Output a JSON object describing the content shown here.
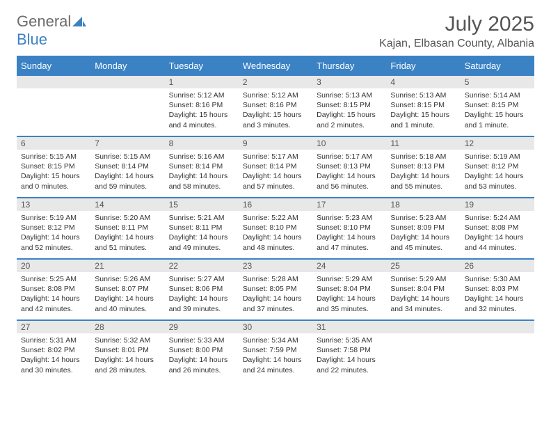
{
  "logo": {
    "general": "General",
    "blue": "Blue"
  },
  "title": "July 2025",
  "location": "Kajan, Elbasan County, Albania",
  "colors": {
    "header_bg": "#3b82c4",
    "header_text": "#ffffff",
    "daynum_bg": "#e8e8e8",
    "text": "#333333",
    "border": "#3b82c4"
  },
  "weekdays": [
    "Sunday",
    "Monday",
    "Tuesday",
    "Wednesday",
    "Thursday",
    "Friday",
    "Saturday"
  ],
  "weeks": [
    [
      null,
      null,
      {
        "n": "1",
        "sr": "5:12 AM",
        "ss": "8:16 PM",
        "dl": "15 hours and 4 minutes."
      },
      {
        "n": "2",
        "sr": "5:12 AM",
        "ss": "8:16 PM",
        "dl": "15 hours and 3 minutes."
      },
      {
        "n": "3",
        "sr": "5:13 AM",
        "ss": "8:15 PM",
        "dl": "15 hours and 2 minutes."
      },
      {
        "n": "4",
        "sr": "5:13 AM",
        "ss": "8:15 PM",
        "dl": "15 hours and 1 minute."
      },
      {
        "n": "5",
        "sr": "5:14 AM",
        "ss": "8:15 PM",
        "dl": "15 hours and 1 minute."
      }
    ],
    [
      {
        "n": "6",
        "sr": "5:15 AM",
        "ss": "8:15 PM",
        "dl": "15 hours and 0 minutes."
      },
      {
        "n": "7",
        "sr": "5:15 AM",
        "ss": "8:14 PM",
        "dl": "14 hours and 59 minutes."
      },
      {
        "n": "8",
        "sr": "5:16 AM",
        "ss": "8:14 PM",
        "dl": "14 hours and 58 minutes."
      },
      {
        "n": "9",
        "sr": "5:17 AM",
        "ss": "8:14 PM",
        "dl": "14 hours and 57 minutes."
      },
      {
        "n": "10",
        "sr": "5:17 AM",
        "ss": "8:13 PM",
        "dl": "14 hours and 56 minutes."
      },
      {
        "n": "11",
        "sr": "5:18 AM",
        "ss": "8:13 PM",
        "dl": "14 hours and 55 minutes."
      },
      {
        "n": "12",
        "sr": "5:19 AM",
        "ss": "8:12 PM",
        "dl": "14 hours and 53 minutes."
      }
    ],
    [
      {
        "n": "13",
        "sr": "5:19 AM",
        "ss": "8:12 PM",
        "dl": "14 hours and 52 minutes."
      },
      {
        "n": "14",
        "sr": "5:20 AM",
        "ss": "8:11 PM",
        "dl": "14 hours and 51 minutes."
      },
      {
        "n": "15",
        "sr": "5:21 AM",
        "ss": "8:11 PM",
        "dl": "14 hours and 49 minutes."
      },
      {
        "n": "16",
        "sr": "5:22 AM",
        "ss": "8:10 PM",
        "dl": "14 hours and 48 minutes."
      },
      {
        "n": "17",
        "sr": "5:23 AM",
        "ss": "8:10 PM",
        "dl": "14 hours and 47 minutes."
      },
      {
        "n": "18",
        "sr": "5:23 AM",
        "ss": "8:09 PM",
        "dl": "14 hours and 45 minutes."
      },
      {
        "n": "19",
        "sr": "5:24 AM",
        "ss": "8:08 PM",
        "dl": "14 hours and 44 minutes."
      }
    ],
    [
      {
        "n": "20",
        "sr": "5:25 AM",
        "ss": "8:08 PM",
        "dl": "14 hours and 42 minutes."
      },
      {
        "n": "21",
        "sr": "5:26 AM",
        "ss": "8:07 PM",
        "dl": "14 hours and 40 minutes."
      },
      {
        "n": "22",
        "sr": "5:27 AM",
        "ss": "8:06 PM",
        "dl": "14 hours and 39 minutes."
      },
      {
        "n": "23",
        "sr": "5:28 AM",
        "ss": "8:05 PM",
        "dl": "14 hours and 37 minutes."
      },
      {
        "n": "24",
        "sr": "5:29 AM",
        "ss": "8:04 PM",
        "dl": "14 hours and 35 minutes."
      },
      {
        "n": "25",
        "sr": "5:29 AM",
        "ss": "8:04 PM",
        "dl": "14 hours and 34 minutes."
      },
      {
        "n": "26",
        "sr": "5:30 AM",
        "ss": "8:03 PM",
        "dl": "14 hours and 32 minutes."
      }
    ],
    [
      {
        "n": "27",
        "sr": "5:31 AM",
        "ss": "8:02 PM",
        "dl": "14 hours and 30 minutes."
      },
      {
        "n": "28",
        "sr": "5:32 AM",
        "ss": "8:01 PM",
        "dl": "14 hours and 28 minutes."
      },
      {
        "n": "29",
        "sr": "5:33 AM",
        "ss": "8:00 PM",
        "dl": "14 hours and 26 minutes."
      },
      {
        "n": "30",
        "sr": "5:34 AM",
        "ss": "7:59 PM",
        "dl": "14 hours and 24 minutes."
      },
      {
        "n": "31",
        "sr": "5:35 AM",
        "ss": "7:58 PM",
        "dl": "14 hours and 22 minutes."
      },
      null,
      null
    ]
  ],
  "labels": {
    "sunrise": "Sunrise:",
    "sunset": "Sunset:",
    "daylight": "Daylight:"
  }
}
